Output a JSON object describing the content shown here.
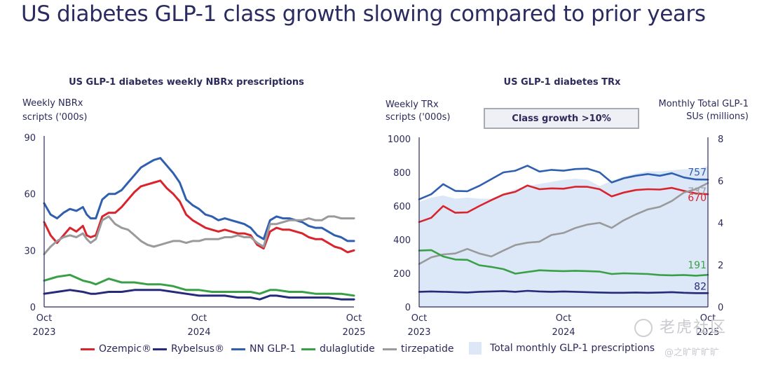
{
  "page": {
    "title": "US diabetes GLP-1 class growth slowing compared to prior years"
  },
  "colors": {
    "ozempic": "#d9232d",
    "rybelsus": "#252a7a",
    "nn_glp1": "#2f5fae",
    "dulaglutide": "#3aa047",
    "tirzepatide": "#9a9a9c",
    "total_area": "#dce8f7",
    "axis": "#2b2a5a"
  },
  "legend": {
    "items": [
      {
        "key": "ozempic",
        "label": "Ozempic®"
      },
      {
        "key": "rybelsus",
        "label": "Rybelsus®"
      },
      {
        "key": "nn_glp1",
        "label": "NN GLP-1"
      },
      {
        "key": "dulaglutide",
        "label": "dulaglutide"
      },
      {
        "key": "tirzepatide",
        "label": "tirzepatide"
      },
      {
        "key": "total_area",
        "label": "Total monthly GLP-1 prescriptions"
      }
    ]
  },
  "annotation": {
    "growth_box": "Class growth >10%"
  },
  "watermark": {
    "line1": "老虎社区",
    "line2": "@之旷旷旷旷"
  },
  "chart_data": [
    {
      "type": "line",
      "title": "US GLP-1 diabetes weekly NBRx prescriptions",
      "ylabel_lines": [
        "Weekly NBRx",
        "scripts ('000s)"
      ],
      "xlabel": "",
      "x_unit": "months since Oct 2023",
      "xlim": [
        0,
        24
      ],
      "ylim": [
        0,
        90
      ],
      "yticks": [
        0,
        30,
        60,
        90
      ],
      "xticks": [
        {
          "x": 0,
          "label": [
            "Oct",
            "2023"
          ]
        },
        {
          "x": 12,
          "label": [
            "Oct",
            "2024"
          ]
        },
        {
          "x": 24,
          "label": [
            "Oct",
            "2025"
          ]
        }
      ],
      "grid": false,
      "series": [
        {
          "name": "NN GLP-1",
          "key": "nn_glp1",
          "x": [
            0,
            0.5,
            1,
            1.5,
            2,
            2.5,
            3,
            3.3,
            3.6,
            4,
            4.5,
            5,
            5.5,
            6,
            6.5,
            7,
            7.5,
            8,
            8.5,
            9,
            9.5,
            10,
            10.5,
            11,
            11.5,
            12,
            12.5,
            13,
            13.5,
            14,
            14.5,
            15,
            15.5,
            16,
            16.5,
            17,
            17.5,
            18,
            18.5,
            19,
            19.5,
            20,
            20.5,
            21,
            21.5,
            22,
            22.5,
            23,
            23.5,
            24
          ],
          "y": [
            55,
            49,
            47,
            50,
            52,
            51,
            53,
            49,
            47,
            47,
            57,
            60,
            60,
            62,
            66,
            70,
            74,
            76,
            78,
            79,
            75,
            71,
            66,
            57,
            54,
            52,
            49,
            48,
            46,
            47,
            46,
            45,
            44,
            42,
            38,
            36,
            46,
            48,
            47,
            47,
            46,
            45,
            43,
            42,
            42,
            40,
            38,
            37,
            35,
            35
          ]
        },
        {
          "name": "Ozempic®",
          "key": "ozempic",
          "x": [
            0,
            0.5,
            1,
            1.5,
            2,
            2.5,
            3,
            3.3,
            3.6,
            4,
            4.5,
            5,
            5.5,
            6,
            6.5,
            7,
            7.5,
            8,
            8.5,
            9,
            9.5,
            10,
            10.5,
            11,
            11.5,
            12,
            12.5,
            13,
            13.5,
            14,
            14.5,
            15,
            15.5,
            16,
            16.5,
            17,
            17.5,
            18,
            18.5,
            19,
            19.5,
            20,
            20.5,
            21,
            21.5,
            22,
            22.5,
            23,
            23.5,
            24
          ],
          "y": [
            45,
            38,
            34,
            38,
            42,
            40,
            43,
            38,
            37,
            38,
            48,
            50,
            50,
            53,
            57,
            61,
            64,
            65,
            66,
            67,
            63,
            60,
            56,
            49,
            46,
            44,
            42,
            41,
            40,
            41,
            40,
            39,
            39,
            38,
            33,
            31,
            40,
            42,
            41,
            41,
            40,
            39,
            37,
            36,
            36,
            34,
            32,
            31,
            29,
            30
          ]
        },
        {
          "name": "tirzepatide",
          "key": "tirzepatide",
          "x": [
            0,
            0.5,
            1,
            1.5,
            2,
            2.5,
            3,
            3.3,
            3.6,
            4,
            4.5,
            5,
            5.5,
            6,
            6.5,
            7,
            7.5,
            8,
            8.5,
            9,
            9.5,
            10,
            10.5,
            11,
            11.5,
            12,
            12.5,
            13,
            13.5,
            14,
            14.5,
            15,
            15.5,
            16,
            16.5,
            17,
            17.5,
            18,
            18.5,
            19,
            19.5,
            20,
            20.5,
            21,
            21.5,
            22,
            22.5,
            23,
            23.5,
            24
          ],
          "y": [
            28,
            32,
            35,
            37,
            38,
            37,
            39,
            36,
            34,
            36,
            46,
            48,
            44,
            42,
            41,
            38,
            35,
            33,
            32,
            33,
            34,
            35,
            35,
            34,
            35,
            35,
            36,
            36,
            36,
            37,
            37,
            38,
            37,
            37,
            34,
            32,
            44,
            44,
            45,
            46,
            46,
            46,
            47,
            46,
            46,
            48,
            48,
            47,
            47,
            47
          ]
        },
        {
          "name": "dulaglutide",
          "key": "dulaglutide",
          "x": [
            0,
            1,
            2,
            3,
            3.6,
            4,
            5,
            6,
            7,
            8,
            9,
            10,
            11,
            12,
            13,
            14,
            15,
            16,
            16.7,
            17.5,
            18,
            19,
            20,
            21,
            22,
            23,
            24
          ],
          "y": [
            14,
            16,
            17,
            14,
            13,
            12,
            15,
            13,
            13,
            12,
            12,
            11,
            9,
            9,
            8,
            8,
            8,
            8,
            7,
            9,
            9,
            8,
            8,
            7,
            7,
            7,
            6
          ]
        },
        {
          "name": "Rybelsus®",
          "key": "rybelsus",
          "x": [
            0,
            1,
            2,
            3,
            3.6,
            4,
            5,
            6,
            7,
            8,
            9,
            10,
            11,
            12,
            13,
            14,
            15,
            16,
            16.7,
            17.5,
            18,
            19,
            20,
            21,
            22,
            23,
            24
          ],
          "y": [
            7,
            8,
            9,
            8,
            7,
            7,
            8,
            8,
            9,
            9,
            9,
            8,
            7,
            6,
            6,
            6,
            5,
            5,
            4,
            6,
            6,
            5,
            5,
            5,
            5,
            4,
            4
          ]
        }
      ]
    },
    {
      "type": "line",
      "title": "US GLP-1 diabetes TRx",
      "ylabel_lines": [
        "Weekly TRx",
        "scripts ('000s)"
      ],
      "y2label_lines": [
        "Monthly Total GLP-1",
        "SUs (millions)"
      ],
      "x_unit": "months since Oct 2023",
      "xlim": [
        0,
        24
      ],
      "ylim": [
        0,
        1000
      ],
      "yticks": [
        0,
        200,
        400,
        600,
        800,
        1000
      ],
      "y2lim": [
        0,
        8
      ],
      "y2ticks": [
        0,
        2,
        4,
        6,
        8
      ],
      "xticks": [
        {
          "x": 0,
          "label": [
            "Oct",
            "2023"
          ]
        },
        {
          "x": 12,
          "label": [
            "Oct",
            "2024"
          ]
        },
        {
          "x": 24,
          "label": [
            "Oct",
            "2025"
          ]
        }
      ],
      "grid": false,
      "area": {
        "name": "Total monthly GLP-1 prescriptions",
        "key": "total_area",
        "axis": "right",
        "x": [
          0,
          1,
          2,
          3,
          4,
          5,
          6,
          7,
          8,
          9,
          10,
          11,
          12,
          13,
          14,
          15,
          16,
          17,
          18,
          19,
          20,
          21,
          22,
          23,
          24
        ],
        "y": [
          5.0,
          5.2,
          5.3,
          5.15,
          5.2,
          5.15,
          5.15,
          5.4,
          5.6,
          5.75,
          5.85,
          5.95,
          6.05,
          6.1,
          6.05,
          5.75,
          6.0,
          6.2,
          6.35,
          6.45,
          6.45,
          6.5,
          6.55,
          6.55,
          6.7
        ]
      },
      "series": [
        {
          "name": "NN GLP-1",
          "key": "nn_glp1",
          "end_label": "757",
          "x": [
            0,
            1,
            2,
            3,
            4,
            5,
            6,
            7,
            8,
            9,
            10,
            11,
            12,
            13,
            14,
            15,
            16,
            17,
            18,
            19,
            20,
            21,
            22,
            23,
            24
          ],
          "y": [
            640,
            670,
            730,
            690,
            688,
            720,
            760,
            800,
            810,
            840,
            805,
            815,
            810,
            820,
            822,
            800,
            740,
            765,
            780,
            790,
            780,
            795,
            770,
            758,
            757
          ]
        },
        {
          "name": "Ozempic®",
          "key": "ozempic",
          "end_label": "670",
          "x": [
            0,
            1,
            2,
            3,
            4,
            5,
            6,
            7,
            8,
            9,
            10,
            11,
            12,
            13,
            14,
            15,
            16,
            17,
            18,
            19,
            20,
            21,
            22,
            23,
            24
          ],
          "y": [
            505,
            530,
            600,
            560,
            562,
            600,
            635,
            668,
            685,
            722,
            700,
            705,
            703,
            715,
            714,
            700,
            657,
            680,
            695,
            700,
            698,
            708,
            690,
            675,
            670
          ]
        },
        {
          "name": "tirzepatide",
          "key": "tirzepatide",
          "end_label": "737",
          "x": [
            0,
            1,
            2,
            3,
            4,
            5,
            6,
            7,
            8,
            9,
            10,
            11,
            12,
            13,
            14,
            15,
            16,
            17,
            18,
            19,
            20,
            21,
            22,
            23,
            24
          ],
          "y": [
            255,
            295,
            312,
            318,
            345,
            318,
            300,
            335,
            368,
            382,
            388,
            428,
            440,
            470,
            490,
            500,
            470,
            515,
            550,
            580,
            595,
            630,
            680,
            700,
            737
          ]
        },
        {
          "name": "dulaglutide",
          "key": "dulaglutide",
          "end_label": "191",
          "x": [
            0,
            1,
            2,
            3,
            4,
            5,
            6,
            7,
            8,
            9,
            10,
            11,
            12,
            13,
            14,
            15,
            16,
            17,
            18,
            19,
            20,
            21,
            22,
            23,
            24
          ],
          "y": [
            335,
            338,
            300,
            282,
            280,
            248,
            238,
            225,
            198,
            208,
            218,
            215,
            213,
            215,
            213,
            210,
            196,
            200,
            198,
            196,
            190,
            188,
            190,
            186,
            191
          ]
        },
        {
          "name": "Rybelsus®",
          "key": "rybelsus",
          "end_label": "82",
          "x": [
            0,
            1,
            2,
            3,
            4,
            5,
            6,
            7,
            8,
            9,
            10,
            11,
            12,
            13,
            14,
            15,
            16,
            17,
            18,
            19,
            20,
            21,
            22,
            23,
            24
          ],
          "y": [
            90,
            92,
            90,
            88,
            86,
            90,
            92,
            94,
            90,
            96,
            92,
            90,
            92,
            90,
            88,
            86,
            84,
            84,
            86,
            84,
            86,
            88,
            84,
            82,
            82
          ]
        }
      ]
    }
  ]
}
